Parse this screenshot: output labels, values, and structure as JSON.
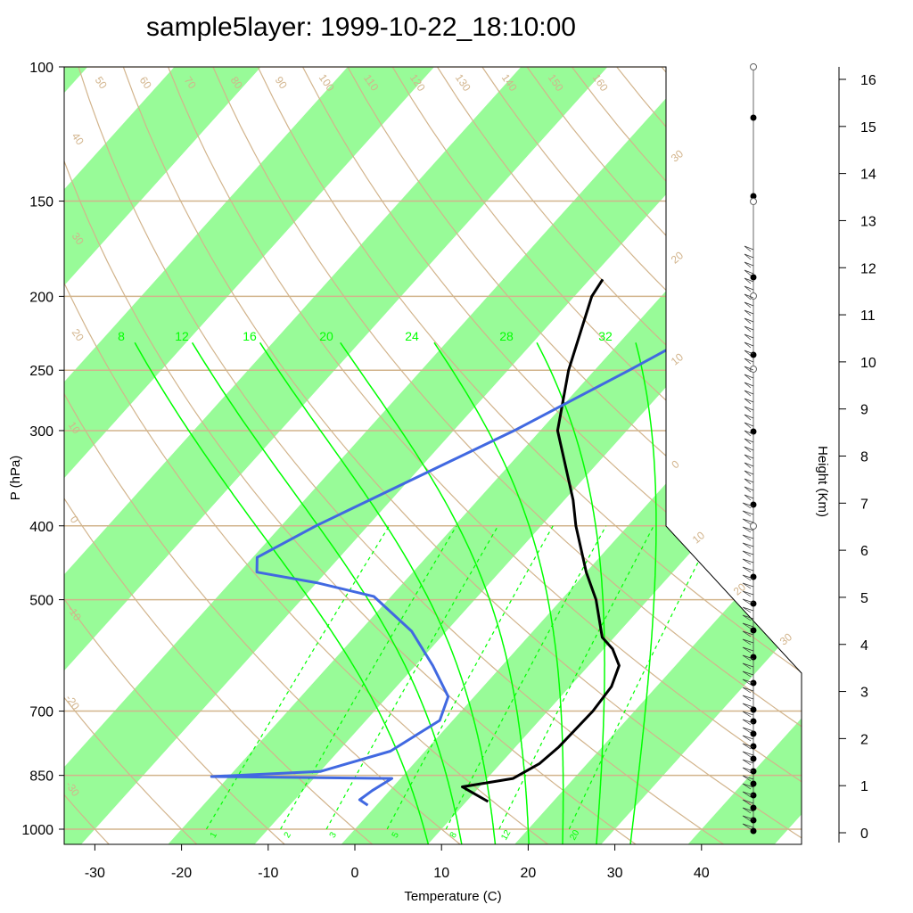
{
  "chart_data": {
    "type": "skew-t",
    "title": "sample5layer: 1999-10-22_18:10:00",
    "xlabel": "Temperature (C)",
    "ylabel": "P (hPa)",
    "y2label": "Height (Km)",
    "x_ticks": [
      "-30",
      "-20",
      "-10",
      "0",
      "10",
      "20",
      "30",
      "40"
    ],
    "p_ticks": [
      "100",
      "150",
      "200",
      "250",
      "300",
      "400",
      "500",
      "700",
      "850",
      "1000"
    ],
    "height_ticks": [
      "0",
      "1",
      "2",
      "3",
      "4",
      "5",
      "6",
      "7",
      "8",
      "9",
      "10",
      "11",
      "12",
      "13",
      "14",
      "15",
      "16"
    ],
    "dry_adiabat_labels": [
      "50",
      "60",
      "70",
      "80",
      "90",
      "100",
      "110",
      "120",
      "130",
      "140",
      "150",
      "160"
    ],
    "left_edge_labels": [
      "40",
      "30",
      "20",
      "10",
      "0",
      "-10",
      "-20",
      "-30"
    ],
    "right_edge_labels": [
      "30",
      "20",
      "10",
      "0",
      "10",
      "20",
      "30"
    ],
    "moist_adiabat_labels": [
      "8",
      "12",
      "16",
      "20",
      "24",
      "28",
      "32"
    ],
    "mixing_ratio_labels": [
      "1",
      "2",
      "3",
      "5",
      "8",
      "12",
      "20"
    ],
    "series": [
      {
        "name": "Temperature",
        "color": "#000000",
        "pressure": [
          920,
          880,
          858,
          820,
          780,
          700,
          650,
          610,
          580,
          560,
          500,
          460,
          400,
          370,
          300,
          250,
          200,
          190
        ],
        "temp": [
          12.5,
          8.0,
          13.0,
          14.5,
          15.0,
          15.2,
          14.8,
          13.5,
          11.0,
          8.6,
          4.0,
          0.0,
          -6.0,
          -9.0,
          -18.0,
          -23.0,
          -28.0,
          -28.5
        ]
      },
      {
        "name": "Dewpoint",
        "color": "#4169e1",
        "pressure": [
          930,
          915,
          890,
          858,
          853,
          840,
          790,
          720,
          670,
          610,
          550,
          495,
          475,
          460,
          440,
          400,
          300,
          250,
          200,
          190
        ],
        "temp": [
          -1.0,
          -2.5,
          -2.0,
          -1.0,
          -22.0,
          -10.0,
          -4.0,
          -1.5,
          -3.0,
          -8.0,
          -14.0,
          -22.0,
          -30.0,
          -38.0,
          -39.5,
          -36.0,
          -23.0,
          -16.0,
          -8.0,
          -6.5
        ]
      }
    ]
  }
}
